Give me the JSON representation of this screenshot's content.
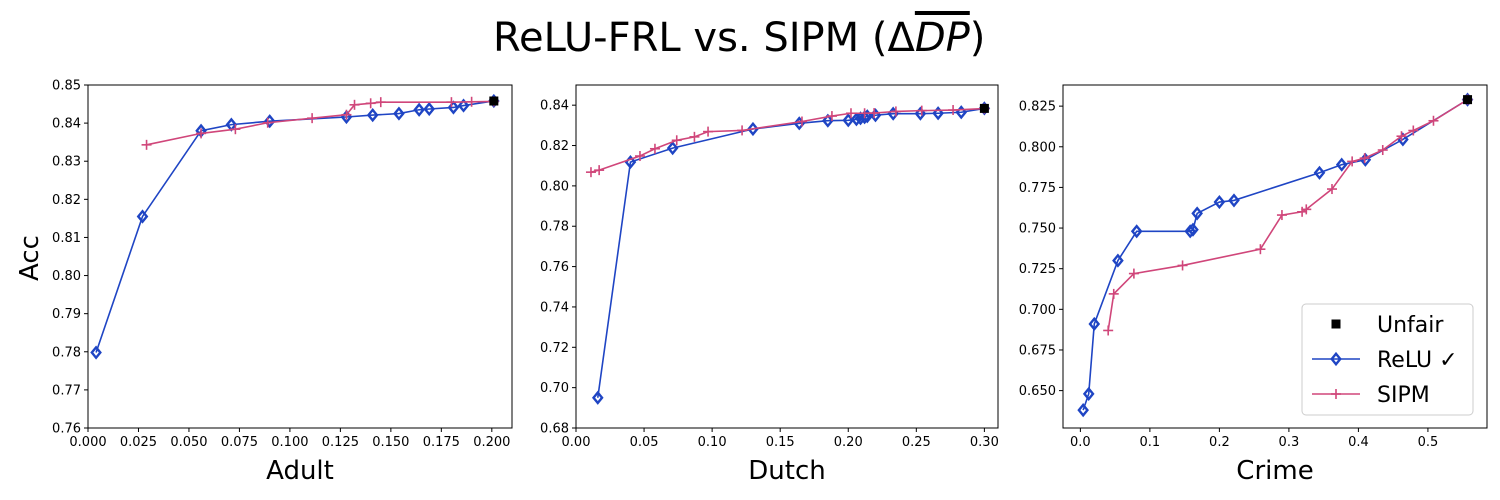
{
  "title_main": "ReLU-FRL vs. SIPM (Δ",
  "title_sym": "DP",
  "title_close": ")",
  "colors": {
    "relu": "#1f45c4",
    "sipm": "#d0467a",
    "unfair": "#000000",
    "axis": "#000000"
  },
  "ylabel": "Acc",
  "legend": {
    "placement": "lower-right",
    "items": [
      "Unfair",
      "ReLU ✓",
      "SIPM"
    ]
  },
  "chart_data": [
    {
      "type": "line",
      "xlabel": "Adult",
      "xlim": [
        0.0,
        0.21
      ],
      "ylim": [
        0.76,
        0.85
      ],
      "xticks": [
        0.0,
        0.025,
        0.05,
        0.075,
        0.1,
        0.125,
        0.15,
        0.175,
        0.2
      ],
      "xtick_labels": [
        "0.000",
        "0.025",
        "0.050",
        "0.075",
        "0.100",
        "0.125",
        "0.150",
        "0.175",
        "0.200"
      ],
      "yticks": [
        0.76,
        0.77,
        0.78,
        0.79,
        0.8,
        0.81,
        0.82,
        0.83,
        0.84,
        0.85
      ],
      "ytick_labels": [
        "0.76",
        "0.77",
        "0.78",
        "0.79",
        "0.80",
        "0.81",
        "0.82",
        "0.83",
        "0.84",
        "0.85"
      ],
      "series": [
        {
          "name": "ReLU ✓",
          "marker": "diamond",
          "x": [
            0.004,
            0.027,
            0.056,
            0.071,
            0.09,
            0.128,
            0.141,
            0.154,
            0.164,
            0.169,
            0.181,
            0.186,
            0.201
          ],
          "y": [
            0.7798,
            0.8155,
            0.838,
            0.8396,
            0.8405,
            0.8416,
            0.8421,
            0.8425,
            0.8435,
            0.8437,
            0.8441,
            0.8446,
            0.8458
          ]
        },
        {
          "name": "SIPM",
          "marker": "plus",
          "x": [
            0.029,
            0.056,
            0.073,
            0.089,
            0.111,
            0.128,
            0.132,
            0.14,
            0.145,
            0.18,
            0.19,
            0.201
          ],
          "y": [
            0.8343,
            0.8373,
            0.8384,
            0.8401,
            0.8413,
            0.8422,
            0.8448,
            0.8452,
            0.8455,
            0.8455,
            0.8456,
            0.8457
          ]
        },
        {
          "name": "Unfair",
          "marker": "square",
          "x": [
            0.201
          ],
          "y": [
            0.8458
          ]
        }
      ]
    },
    {
      "type": "line",
      "xlabel": "Dutch",
      "xlim": [
        0.0,
        0.31
      ],
      "ylim": [
        0.68,
        0.85
      ],
      "xticks": [
        0.0,
        0.05,
        0.1,
        0.15,
        0.2,
        0.25,
        0.3
      ],
      "xtick_labels": [
        "0.00",
        "0.05",
        "0.10",
        "0.15",
        "0.20",
        "0.25",
        "0.30"
      ],
      "yticks": [
        0.68,
        0.7,
        0.72,
        0.74,
        0.76,
        0.78,
        0.8,
        0.82,
        0.84
      ],
      "ytick_labels": [
        "0.68",
        "0.70",
        "0.72",
        "0.74",
        "0.76",
        "0.78",
        "0.80",
        "0.82",
        "0.84"
      ],
      "series": [
        {
          "name": "ReLU ✓",
          "marker": "diamond",
          "x": [
            0.016,
            0.04,
            0.071,
            0.13,
            0.164,
            0.185,
            0.2,
            0.206,
            0.209,
            0.212,
            0.214,
            0.22,
            0.233,
            0.253,
            0.266,
            0.283,
            0.3
          ],
          "y": [
            0.695,
            0.8118,
            0.8187,
            0.8282,
            0.831,
            0.8323,
            0.8325,
            0.833,
            0.8335,
            0.834,
            0.8345,
            0.835,
            0.8358,
            0.8358,
            0.836,
            0.8365,
            0.8384
          ]
        },
        {
          "name": "SIPM",
          "marker": "plus",
          "x": [
            0.011,
            0.017,
            0.047,
            0.058,
            0.074,
            0.087,
            0.097,
            0.122,
            0.166,
            0.188,
            0.202,
            0.212,
            0.219,
            0.235,
            0.254,
            0.277,
            0.3
          ],
          "y": [
            0.8068,
            0.8078,
            0.8148,
            0.8184,
            0.8226,
            0.8243,
            0.8269,
            0.8275,
            0.8319,
            0.8346,
            0.836,
            0.836,
            0.8361,
            0.8369,
            0.8373,
            0.8376,
            0.8383
          ]
        },
        {
          "name": "Unfair",
          "marker": "square",
          "x": [
            0.3
          ],
          "y": [
            0.8384
          ]
        }
      ]
    },
    {
      "type": "line",
      "xlabel": "Crime",
      "xlim": [
        -0.025,
        0.585
      ],
      "ylim": [
        0.627,
        0.838
      ],
      "xticks": [
        0.0,
        0.1,
        0.2,
        0.3,
        0.4,
        0.5
      ],
      "xtick_labels": [
        "0.0",
        "0.1",
        "0.2",
        "0.3",
        "0.4",
        "0.5"
      ],
      "yticks": [
        0.65,
        0.675,
        0.7,
        0.725,
        0.75,
        0.775,
        0.8,
        0.825
      ],
      "ytick_labels": [
        "0.650",
        "0.675",
        "0.700",
        "0.725",
        "0.750",
        "0.775",
        "0.800",
        "0.825"
      ],
      "series": [
        {
          "name": "ReLU ✓",
          "marker": "diamond",
          "x": [
            0.004,
            0.012,
            0.02,
            0.054,
            0.081,
            0.158,
            0.162,
            0.168,
            0.2,
            0.221,
            0.344,
            0.376,
            0.41,
            0.464,
            0.557
          ],
          "y": [
            0.638,
            0.648,
            0.691,
            0.73,
            0.748,
            0.748,
            0.749,
            0.759,
            0.766,
            0.767,
            0.784,
            0.789,
            0.792,
            0.8045,
            0.829
          ]
        },
        {
          "name": "SIPM",
          "marker": "plus",
          "x": [
            0.04,
            0.048,
            0.077,
            0.147,
            0.259,
            0.29,
            0.319,
            0.325,
            0.362,
            0.391,
            0.409,
            0.435,
            0.462,
            0.479,
            0.508,
            0.557
          ],
          "y": [
            0.687,
            0.7095,
            0.722,
            0.727,
            0.737,
            0.758,
            0.76,
            0.7615,
            0.774,
            0.791,
            0.793,
            0.798,
            0.8065,
            0.81,
            0.816,
            0.829
          ]
        },
        {
          "name": "Unfair",
          "marker": "square",
          "x": [
            0.557
          ],
          "y": [
            0.829
          ]
        }
      ]
    }
  ]
}
